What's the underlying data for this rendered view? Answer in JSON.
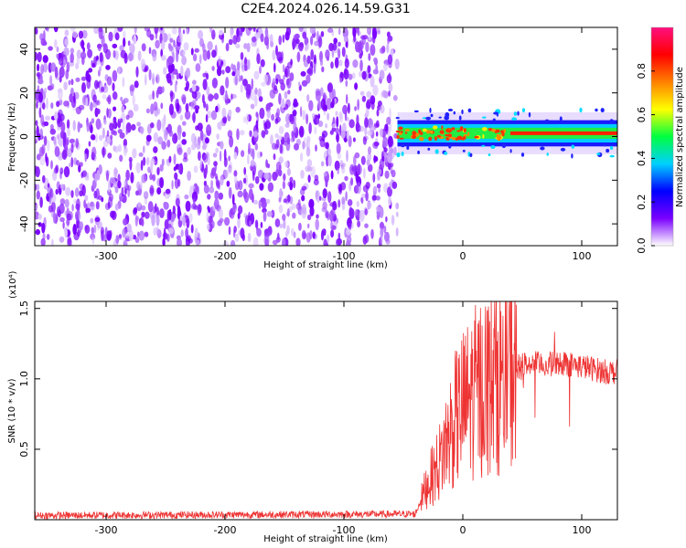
{
  "title": "C2E4.2024.026.14.59.G31",
  "chart_data": [
    {
      "type": "heatmap",
      "xlabel": "Height of straight line (km)",
      "ylabel": "Frequency (Hz)",
      "xlim": [
        -360,
        130
      ],
      "ylim": [
        -50,
        50
      ],
      "xticks": [
        -300,
        -200,
        -100,
        0,
        100
      ],
      "yticks": [
        -40,
        -20,
        0,
        20,
        40
      ],
      "xtick_labels": [
        "-300",
        "-200",
        "-100",
        "0",
        "100"
      ],
      "ytick_labels": [
        "-40",
        "-20",
        "0",
        "20",
        "40"
      ],
      "noise_region": {
        "x_range": [
          -360,
          -55
        ],
        "y_range": [
          -50,
          50
        ]
      },
      "signal_band": {
        "x_range": [
          -55,
          130
        ],
        "center_hz": 1.5,
        "width_hz": 6
      },
      "colorbar": {
        "label": "Normalized spectral amplitude",
        "range": [
          0.0,
          1.0
        ],
        "ticks": [
          0.0,
          0.2,
          0.4,
          0.6,
          0.8
        ],
        "tick_labels": [
          "0.0",
          "0.2",
          "0.4",
          "0.6",
          "0.8"
        ],
        "colormap": "rainbow",
        "colors": [
          "#ffffff",
          "#7a00ff",
          "#0000ff",
          "#00d0ff",
          "#00ff40",
          "#ffff00",
          "#ff8000",
          "#ff0000",
          "#ff1080"
        ]
      },
      "grid": false
    },
    {
      "type": "line",
      "xlabel": "Height of straight line (km)",
      "ylabel": "SNR (10 * v/v)",
      "y_multiplier": "(x10⁴)",
      "xlim": [
        -360,
        130
      ],
      "ylim": [
        0,
        15500
      ],
      "xticks": [
        -300,
        -200,
        -100,
        0,
        100
      ],
      "yticks": [
        5000,
        10000,
        15000
      ],
      "xtick_labels": [
        "-300",
        "-200",
        "-100",
        "0",
        "100"
      ],
      "ytick_labels": [
        "0.5",
        "1.0",
        "1.5"
      ],
      "color": "#ee3333",
      "series_profile": {
        "x": [
          -360,
          -200,
          -40,
          -30,
          -20,
          -10,
          0,
          10,
          20,
          30,
          40,
          50,
          60,
          70,
          80,
          90,
          100,
          110,
          120,
          130
        ],
        "y": [
          300,
          350,
          400,
          2500,
          4000,
          6500,
          8000,
          9000,
          9700,
          10200,
          10700,
          11000,
          11100,
          11000,
          11100,
          11050,
          10900,
          10700,
          10500,
          10500
        ]
      },
      "grid": false
    }
  ]
}
